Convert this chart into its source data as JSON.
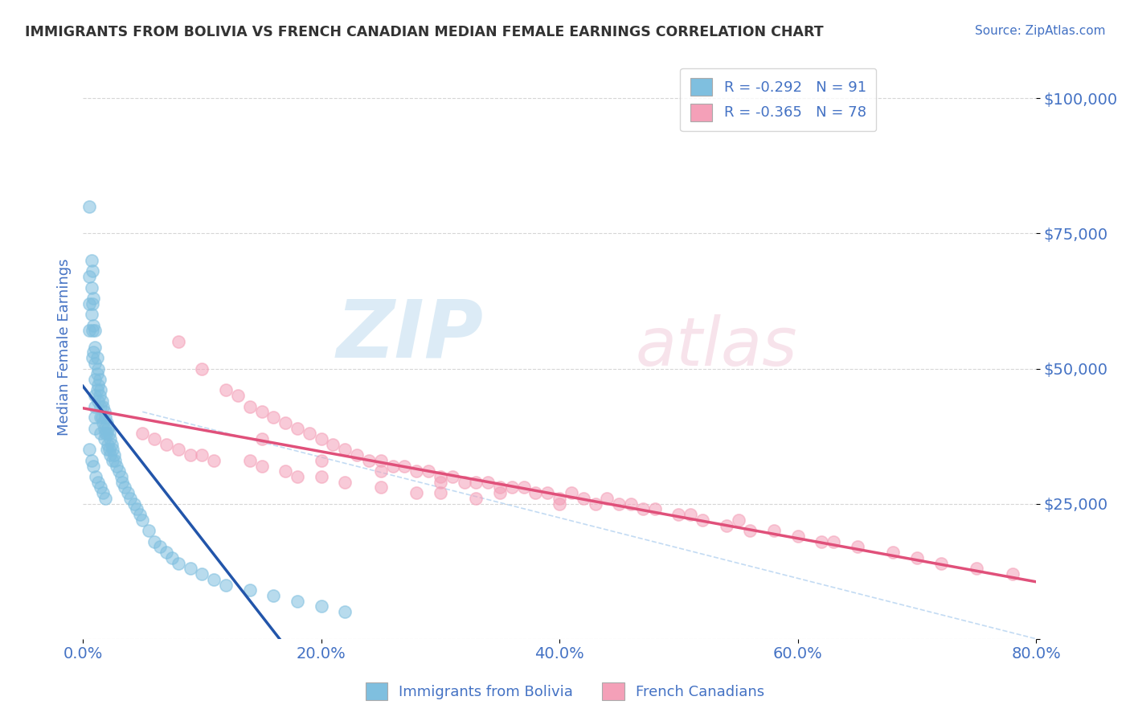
{
  "title": "IMMIGRANTS FROM BOLIVIA VS FRENCH CANADIAN MEDIAN FEMALE EARNINGS CORRELATION CHART",
  "source": "Source: ZipAtlas.com",
  "ylabel": "Median Female Earnings",
  "watermark": "ZIPatlas",
  "xlim": [
    0.0,
    0.8
  ],
  "ylim": [
    0,
    108000
  ],
  "yticks": [
    0,
    25000,
    50000,
    75000,
    100000
  ],
  "ytick_labels": [
    "",
    "$25,000",
    "$50,000",
    "$75,000",
    "$100,000"
  ],
  "xtick_labels": [
    "0.0%",
    "20.0%",
    "40.0%",
    "60.0%",
    "80.0%"
  ],
  "xticks": [
    0.0,
    0.2,
    0.4,
    0.6,
    0.8
  ],
  "series1_color": "#7fbfdf",
  "series2_color": "#f4a0b8",
  "series1_label": "Immigrants from Bolivia",
  "series2_label": "French Canadians",
  "legend_text1": "R = -0.292   N = 91",
  "legend_text2": "R = -0.365   N = 78",
  "title_color": "#333333",
  "axis_label_color": "#4472c4",
  "tick_label_color": "#4472c4",
  "trend_color1": "#2255aa",
  "trend_color2": "#e0507a",
  "diag_color": "#aaccee",
  "background_color": "#ffffff",
  "series1_x": [
    0.005,
    0.005,
    0.005,
    0.005,
    0.007,
    0.007,
    0.007,
    0.008,
    0.008,
    0.008,
    0.008,
    0.009,
    0.009,
    0.009,
    0.01,
    0.01,
    0.01,
    0.01,
    0.01,
    0.01,
    0.01,
    0.01,
    0.012,
    0.012,
    0.012,
    0.013,
    0.013,
    0.013,
    0.014,
    0.014,
    0.015,
    0.015,
    0.015,
    0.015,
    0.016,
    0.016,
    0.017,
    0.017,
    0.018,
    0.018,
    0.018,
    0.019,
    0.019,
    0.02,
    0.02,
    0.02,
    0.021,
    0.021,
    0.022,
    0.022,
    0.023,
    0.023,
    0.024,
    0.025,
    0.025,
    0.026,
    0.027,
    0.028,
    0.03,
    0.032,
    0.033,
    0.035,
    0.038,
    0.04,
    0.043,
    0.045,
    0.048,
    0.05,
    0.055,
    0.06,
    0.065,
    0.07,
    0.075,
    0.08,
    0.09,
    0.1,
    0.11,
    0.12,
    0.14,
    0.16,
    0.18,
    0.2,
    0.22,
    0.005,
    0.007,
    0.009,
    0.011,
    0.013,
    0.015,
    0.017,
    0.019
  ],
  "series1_y": [
    80000,
    67000,
    62000,
    57000,
    70000,
    65000,
    60000,
    68000,
    62000,
    57000,
    52000,
    63000,
    58000,
    53000,
    57000,
    54000,
    51000,
    48000,
    45000,
    43000,
    41000,
    39000,
    52000,
    49000,
    46000,
    50000,
    47000,
    44000,
    48000,
    45000,
    46000,
    43000,
    41000,
    38000,
    44000,
    41000,
    43000,
    40000,
    42000,
    39000,
    37000,
    41000,
    38000,
    40000,
    38000,
    35000,
    39000,
    36000,
    38000,
    35000,
    37000,
    34000,
    36000,
    35000,
    33000,
    34000,
    33000,
    32000,
    31000,
    30000,
    29000,
    28000,
    27000,
    26000,
    25000,
    24000,
    23000,
    22000,
    20000,
    18000,
    17000,
    16000,
    15000,
    14000,
    13000,
    12000,
    11000,
    10000,
    9000,
    8000,
    7000,
    6000,
    5000,
    35000,
    33000,
    32000,
    30000,
    29000,
    28000,
    27000,
    26000
  ],
  "series2_x": [
    0.05,
    0.06,
    0.07,
    0.08,
    0.08,
    0.09,
    0.1,
    0.1,
    0.11,
    0.12,
    0.13,
    0.14,
    0.14,
    0.15,
    0.15,
    0.16,
    0.17,
    0.17,
    0.18,
    0.18,
    0.19,
    0.2,
    0.2,
    0.21,
    0.22,
    0.22,
    0.23,
    0.24,
    0.25,
    0.25,
    0.26,
    0.27,
    0.28,
    0.28,
    0.29,
    0.3,
    0.3,
    0.31,
    0.32,
    0.33,
    0.33,
    0.34,
    0.35,
    0.36,
    0.37,
    0.38,
    0.39,
    0.4,
    0.41,
    0.42,
    0.43,
    0.44,
    0.45,
    0.46,
    0.47,
    0.48,
    0.5,
    0.51,
    0.52,
    0.54,
    0.55,
    0.56,
    0.58,
    0.6,
    0.62,
    0.63,
    0.65,
    0.68,
    0.7,
    0.72,
    0.75,
    0.78,
    0.15,
    0.2,
    0.25,
    0.3,
    0.35,
    0.4
  ],
  "series2_y": [
    38000,
    37000,
    36000,
    55000,
    35000,
    34000,
    50000,
    34000,
    33000,
    46000,
    45000,
    43000,
    33000,
    42000,
    32000,
    41000,
    40000,
    31000,
    39000,
    30000,
    38000,
    37000,
    30000,
    36000,
    35000,
    29000,
    34000,
    33000,
    33000,
    28000,
    32000,
    32000,
    31000,
    27000,
    31000,
    30000,
    27000,
    30000,
    29000,
    29000,
    26000,
    29000,
    28000,
    28000,
    28000,
    27000,
    27000,
    26000,
    27000,
    26000,
    25000,
    26000,
    25000,
    25000,
    24000,
    24000,
    23000,
    23000,
    22000,
    21000,
    22000,
    20000,
    20000,
    19000,
    18000,
    18000,
    17000,
    16000,
    15000,
    14000,
    13000,
    12000,
    37000,
    33000,
    31000,
    29000,
    27000,
    25000
  ]
}
